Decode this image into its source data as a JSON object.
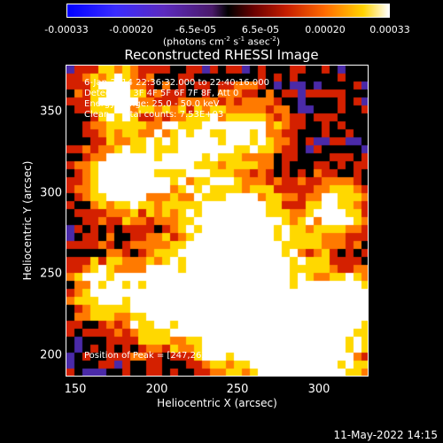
{
  "colorbar": {
    "ticks": [
      "-0.00033",
      "-0.00020",
      "-6.5e-05",
      "6.5e-05",
      "0.00020",
      "0.00033"
    ],
    "units": "(photons cm-2 s-1 asec-2)"
  },
  "title": "Reconstructed RHESSI Image",
  "info": {
    "time_range": "6-Jan-2014 22:36:32.000 to 22:40:16.000",
    "detectors": "Detectors: 3F 4F 5F 6F 7F 8F, Att 0",
    "energy": "Energy Range: 25.0 - 50.0 keV",
    "clean": "Clean    Total counts: 7.53E+03",
    "peak": "Position of Peak = [247,263]"
  },
  "axes": {
    "xlabel": "Heliocentric X (arcsec)",
    "ylabel": "Heliocentric Y (arcsec)",
    "xticks": [
      "150",
      "200",
      "250",
      "300"
    ],
    "yticks": [
      "350",
      "300",
      "250",
      "200"
    ],
    "xlim": [
      146,
      335
    ],
    "ylim": [
      187,
      385
    ]
  },
  "footer": {
    "date": "11-May-2022 14:15"
  },
  "palette": {
    "deep_blue": "#1d1ad8",
    "purple": "#4a2aa8",
    "dark": "#000000",
    "red": "#d42000",
    "orange": "#ff7a00",
    "yellow": "#ffd800",
    "white": "#ffffff"
  }
}
